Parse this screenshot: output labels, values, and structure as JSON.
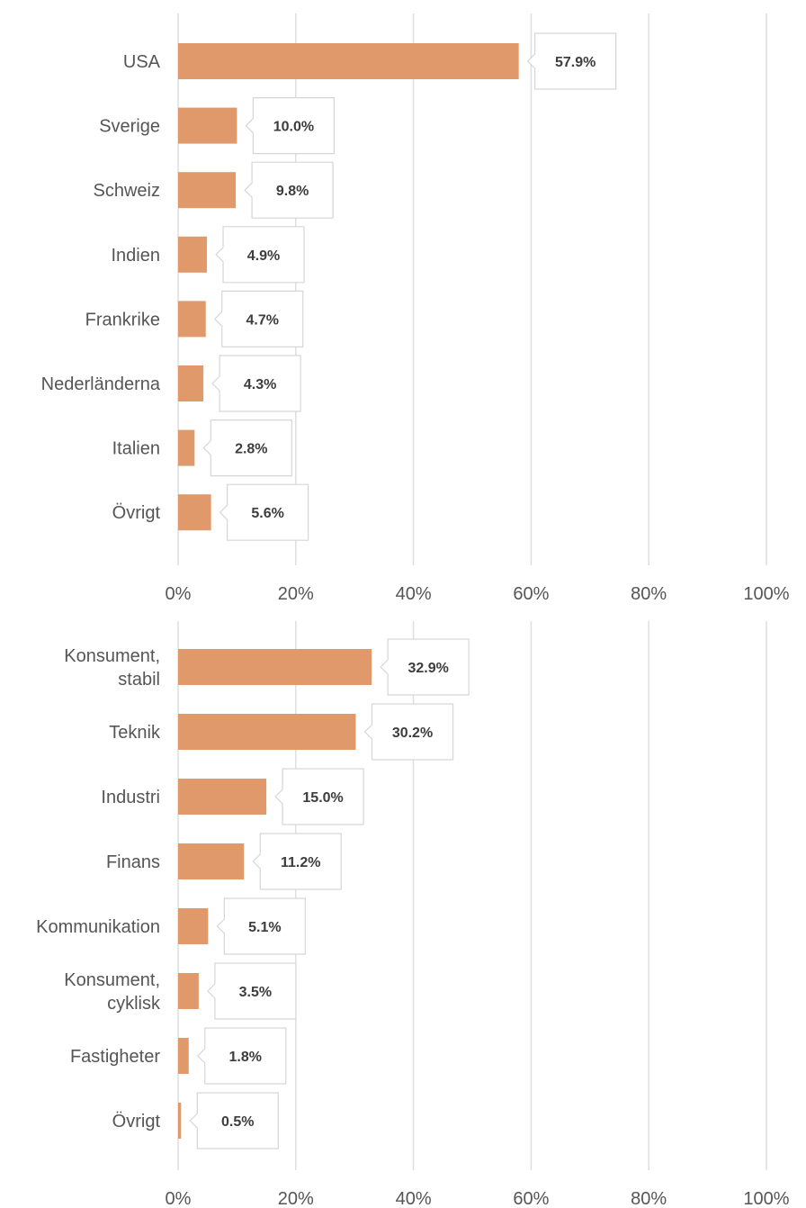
{
  "colors": {
    "bar": "#E0996A",
    "grid": "#dedede",
    "text": "#555555",
    "value_text": "#3d3d3d"
  },
  "chart_data": [
    {
      "type": "bar",
      "orientation": "horizontal",
      "categories": [
        "USA",
        "Sverige",
        "Schweiz",
        "Indien",
        "Frankrike",
        "Nederländerna",
        "Italien",
        "Övrigt"
      ],
      "values": [
        57.9,
        10.0,
        9.8,
        4.9,
        4.7,
        4.3,
        2.8,
        5.6
      ],
      "value_labels": [
        "57.9%",
        "10.0%",
        "9.8%",
        "4.9%",
        "4.7%",
        "4.3%",
        "2.8%",
        "5.6%"
      ],
      "xlim": [
        0,
        100
      ],
      "ticks": [
        0,
        20,
        40,
        60,
        80,
        100
      ],
      "tick_labels": [
        "0%",
        "20%",
        "40%",
        "60%",
        "80%",
        "100%"
      ],
      "grid": true
    },
    {
      "type": "bar",
      "orientation": "horizontal",
      "categories": [
        [
          "Konsument,",
          "stabil"
        ],
        [
          "Teknik"
        ],
        [
          "Industri"
        ],
        [
          "Finans"
        ],
        [
          "Kommunikation"
        ],
        [
          "Konsument,",
          "cyklisk"
        ],
        [
          "Fastigheter"
        ],
        [
          "Övrigt"
        ]
      ],
      "values": [
        32.9,
        30.2,
        15.0,
        11.2,
        5.1,
        3.5,
        1.8,
        0.5
      ],
      "value_labels": [
        "32.9%",
        "30.2%",
        "15.0%",
        "11.2%",
        "5.1%",
        "3.5%",
        "1.8%",
        "0.5%"
      ],
      "xlim": [
        0,
        100
      ],
      "ticks": [
        0,
        20,
        40,
        60,
        80,
        100
      ],
      "tick_labels": [
        "0%",
        "20%",
        "40%",
        "60%",
        "80%",
        "100%"
      ],
      "grid": true
    }
  ]
}
